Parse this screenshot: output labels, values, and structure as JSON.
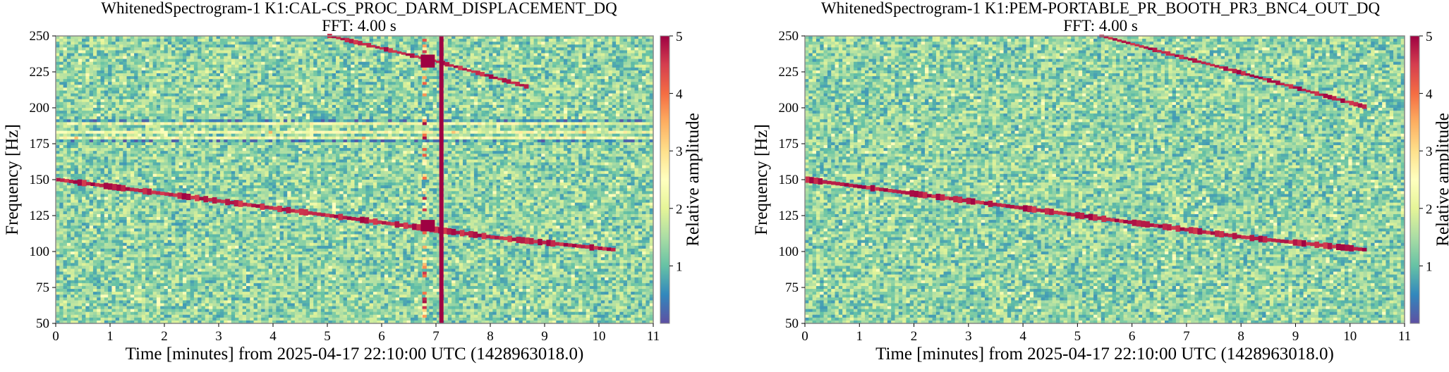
{
  "chart_data": [
    {
      "type": "heatmap",
      "title": "WhitenedSpectrogram-1 K1:CAL-CS_PROC_DARM_DISPLACEMENT_DQ",
      "subtitle": "FFT: 4.00 s",
      "xlabel": "Time [minutes] from 2025-04-17 22:10:00 UTC (1428963018.0)",
      "ylabel": "Frequency [Hz]",
      "xlim": [
        0,
        11
      ],
      "ylim": [
        50,
        250
      ],
      "xticks": [
        0,
        1,
        2,
        3,
        4,
        5,
        6,
        7,
        8,
        9,
        10,
        11
      ],
      "yticks": [
        50,
        75,
        100,
        125,
        150,
        175,
        200,
        225,
        250
      ],
      "colorbar": {
        "label": "Relative amplitude",
        "ticks": [
          1,
          2,
          3,
          4,
          5
        ],
        "range": [
          0,
          5
        ],
        "colormap": "Spectral_r"
      },
      "features": {
        "main_chirp": [
          [
            0,
            150
          ],
          [
            2,
            140
          ],
          [
            4,
            130
          ],
          [
            6,
            120
          ],
          [
            8,
            110
          ],
          [
            10.3,
            101
          ]
        ],
        "harmonic_chirp": [
          [
            5,
            250
          ],
          [
            7,
            232
          ],
          [
            8.7,
            214
          ]
        ],
        "broadband_glitch": {
          "time": 7.1
        },
        "narrow_lines_hz": [
          190,
          183,
          178
        ]
      }
    },
    {
      "type": "heatmap",
      "title": "WhitenedSpectrogram-1 K1:PEM-PORTABLE_PR_BOOTH_PR3_BNC4_OUT_DQ",
      "subtitle": "FFT: 4.00 s",
      "xlabel": "Time [minutes] from 2025-04-17 22:10:00 UTC (1428963018.0)",
      "ylabel": "Frequency [Hz]",
      "xlim": [
        0,
        11
      ],
      "ylim": [
        50,
        250
      ],
      "xticks": [
        0,
        1,
        2,
        3,
        4,
        5,
        6,
        7,
        8,
        9,
        10,
        11
      ],
      "yticks": [
        50,
        75,
        100,
        125,
        150,
        175,
        200,
        225,
        250
      ],
      "colorbar": {
        "label": "Relative amplitude",
        "ticks": [
          1,
          2,
          3,
          4,
          5
        ],
        "range": [
          0,
          5
        ],
        "colormap": "Spectral_r"
      },
      "features": {
        "main_chirp": [
          [
            0,
            150
          ],
          [
            2,
            140
          ],
          [
            4,
            130
          ],
          [
            6,
            120
          ],
          [
            8,
            110
          ],
          [
            10.3,
            101
          ]
        ],
        "harmonic_chirp": [
          [
            5.4,
            250
          ],
          [
            8,
            224
          ],
          [
            10.3,
            200
          ]
        ]
      }
    }
  ]
}
